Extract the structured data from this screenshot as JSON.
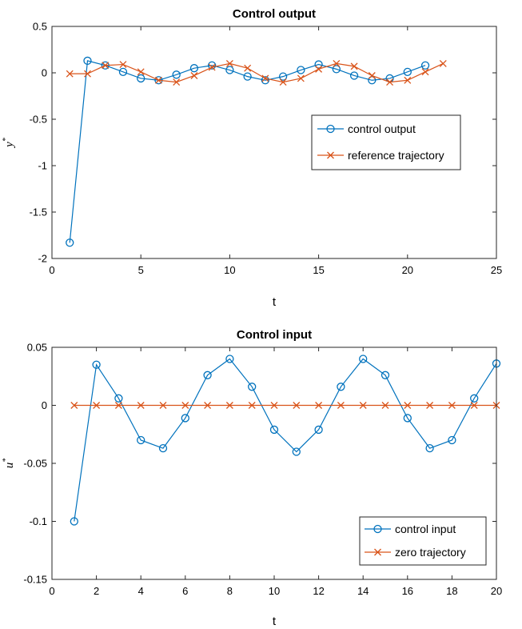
{
  "chart_data": [
    {
      "type": "line",
      "title": "Control output",
      "xlabel": "t",
      "ylabel": {
        "base": "y",
        "sup": "*"
      },
      "xlim": [
        0,
        25
      ],
      "ylim": [
        -2,
        0.5
      ],
      "xticks": [
        0,
        5,
        10,
        15,
        20,
        25
      ],
      "yticks": [
        -2,
        -1.5,
        -1,
        -0.5,
        0,
        0.5
      ],
      "xtick_labels": [
        "0",
        "5",
        "10",
        "15",
        "20",
        "25"
      ],
      "ytick_labels": [
        "-2",
        "-1.5",
        "-1",
        "-0.5",
        "0",
        "0.5"
      ],
      "grid": false,
      "legend_position": "right-middle",
      "series": [
        {
          "name": "control output",
          "marker": "circle",
          "color": "#0072BD",
          "x": [
            1,
            2,
            3,
            4,
            5,
            6,
            7,
            8,
            9,
            10,
            11,
            12,
            13,
            14,
            15,
            16,
            17,
            18,
            19,
            20,
            21
          ],
          "y": [
            -1.83,
            0.13,
            0.08,
            0.01,
            -0.06,
            -0.08,
            -0.02,
            0.05,
            0.08,
            0.03,
            -0.04,
            -0.08,
            -0.04,
            0.03,
            0.09,
            0.04,
            -0.03,
            -0.08,
            -0.06,
            0.01,
            0.08
          ]
        },
        {
          "name": "reference trajectory",
          "marker": "x",
          "color": "#D95319",
          "x": [
            1,
            2,
            3,
            4,
            5,
            6,
            7,
            8,
            9,
            10,
            11,
            12,
            13,
            14,
            15,
            16,
            17,
            18,
            19,
            20,
            21,
            22
          ],
          "y": [
            -0.01,
            -0.01,
            0.08,
            0.09,
            0.01,
            -0.08,
            -0.1,
            -0.03,
            0.06,
            0.1,
            0.05,
            -0.06,
            -0.1,
            -0.06,
            0.04,
            0.1,
            0.07,
            -0.03,
            -0.1,
            -0.08,
            0.01,
            0.1
          ]
        }
      ]
    },
    {
      "type": "line",
      "title": "Control input",
      "xlabel": "t",
      "ylabel": {
        "base": "u",
        "sup": "*"
      },
      "xlim": [
        0,
        20
      ],
      "ylim": [
        -0.15,
        0.05
      ],
      "xticks": [
        0,
        2,
        4,
        6,
        8,
        10,
        12,
        14,
        16,
        18,
        20
      ],
      "yticks": [
        -0.15,
        -0.1,
        -0.05,
        0,
        0.05
      ],
      "xtick_labels": [
        "0",
        "2",
        "4",
        "6",
        "8",
        "10",
        "12",
        "14",
        "16",
        "18",
        "20"
      ],
      "ytick_labels": [
        "-0.15",
        "-0.1",
        "-0.05",
        "0",
        "0.05"
      ],
      "grid": false,
      "legend_position": "bottom-right",
      "series": [
        {
          "name": "control input",
          "marker": "circle",
          "color": "#0072BD",
          "x": [
            1,
            2,
            3,
            4,
            5,
            6,
            7,
            8,
            9,
            10,
            11,
            12,
            13,
            14,
            15,
            16,
            17,
            18,
            19,
            20
          ],
          "y": [
            -0.1,
            0.035,
            0.006,
            -0.03,
            -0.037,
            -0.011,
            0.026,
            0.04,
            0.016,
            -0.021,
            -0.04,
            -0.021,
            0.016,
            0.04,
            0.026,
            -0.011,
            -0.037,
            -0.03,
            0.006,
            0.036
          ]
        },
        {
          "name": "zero trajectory",
          "marker": "x",
          "color": "#D95319",
          "x": [
            1,
            2,
            3,
            4,
            5,
            6,
            7,
            8,
            9,
            10,
            11,
            12,
            13,
            14,
            15,
            16,
            17,
            18,
            19,
            20
          ],
          "y": [
            0,
            0,
            0,
            0,
            0,
            0,
            0,
            0,
            0,
            0,
            0,
            0,
            0,
            0,
            0,
            0,
            0,
            0,
            0,
            0
          ]
        }
      ]
    }
  ]
}
